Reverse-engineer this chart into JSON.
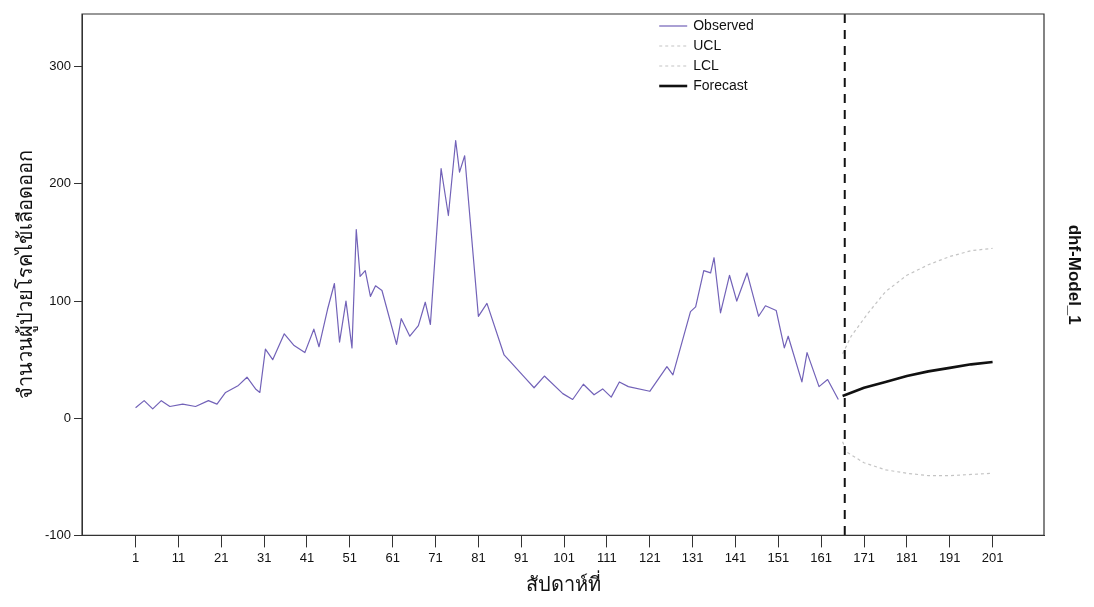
{
  "chart_data": {
    "type": "line",
    "xlabel": "สัปดาห์ที่",
    "ylabel": "จำนวนผู้ป่วยโรคไข้เลือดออก",
    "annotations": [
      "dhf-Model_1"
    ],
    "xlim": [
      -11.5,
      213
    ],
    "ylim": [
      -100,
      345
    ],
    "xticks": [
      1,
      11,
      21,
      31,
      41,
      51,
      61,
      71,
      81,
      91,
      101,
      111,
      121,
      131,
      141,
      151,
      161,
      171,
      181,
      191,
      201
    ],
    "yticks": [
      -100,
      0,
      100,
      200,
      300
    ],
    "grid": false,
    "legend": "top right",
    "marker": "none",
    "series": [
      {
        "name": "Observed",
        "color": "#7262b8",
        "line_style": "solid",
        "x": [
          1,
          3,
          5,
          7,
          9,
          12,
          15,
          18,
          20,
          22,
          25,
          27,
          29,
          30,
          31.3,
          33,
          35.7,
          38,
          40.5,
          42.6,
          43.8,
          45.8,
          47.4,
          48.6,
          50.1,
          51.5,
          52.5,
          53.4,
          54.6,
          55.8,
          57,
          58.5,
          61.9,
          63,
          65,
          67,
          68.6,
          69.8,
          72.3,
          74,
          75.7,
          76.6,
          77.8,
          81,
          83,
          87,
          92,
          94,
          96.4,
          100.7,
          103,
          105.5,
          108,
          110,
          112,
          113.9,
          116,
          121,
          125,
          126.4,
          130.5,
          131.7,
          133.6,
          135.2,
          136,
          137.5,
          139.6,
          141.3,
          143.7,
          146.4,
          148,
          150.5,
          152.4,
          153.3,
          156.5,
          157.7,
          160.5,
          162.5,
          165
        ],
        "values": [
          9,
          15,
          8,
          15,
          10,
          12,
          10,
          15,
          12,
          22,
          28,
          35,
          25,
          22,
          59,
          50,
          72,
          62,
          56,
          76,
          61,
          93,
          115,
          65,
          100,
          60,
          161,
          121,
          126,
          104,
          113,
          109,
          63,
          85,
          70,
          79,
          99,
          80,
          213,
          173,
          237,
          210,
          224,
          87,
          98,
          54,
          34,
          26,
          36,
          21,
          16,
          29,
          20,
          25,
          18,
          31,
          27,
          23,
          44,
          37,
          91,
          95,
          126,
          124,
          137,
          90,
          122,
          100,
          124,
          87,
          96,
          92,
          60,
          70,
          31,
          56,
          27,
          33,
          16
        ]
      },
      {
        "name": "UCL",
        "color": "#c4c4c4",
        "line_style": "dotted",
        "x": [
          166,
          168,
          172,
          176,
          181,
          186,
          191,
          196,
          201
        ],
        "values": [
          55,
          70,
          90,
          108,
          122,
          131,
          138,
          143,
          145
        ]
      },
      {
        "name": "LCL",
        "color": "#c4c4c4",
        "line_style": "dotted",
        "x": [
          166,
          167,
          171,
          176,
          181,
          186,
          191,
          196,
          201
        ],
        "values": [
          -20,
          -29,
          -38,
          -44,
          -47,
          -49,
          -49,
          -48,
          -47
        ]
      },
      {
        "name": "Forecast",
        "color": "#111111",
        "line_style": "solid",
        "x": [
          166,
          171,
          176,
          181,
          186,
          191,
          196,
          201
        ],
        "values": [
          19,
          26,
          31,
          36,
          40,
          43,
          46,
          48
        ]
      }
    ],
    "ref_lines": [
      {
        "axis": "x",
        "value": 166.5,
        "color": "#111111",
        "line_style": "dashed"
      }
    ]
  }
}
